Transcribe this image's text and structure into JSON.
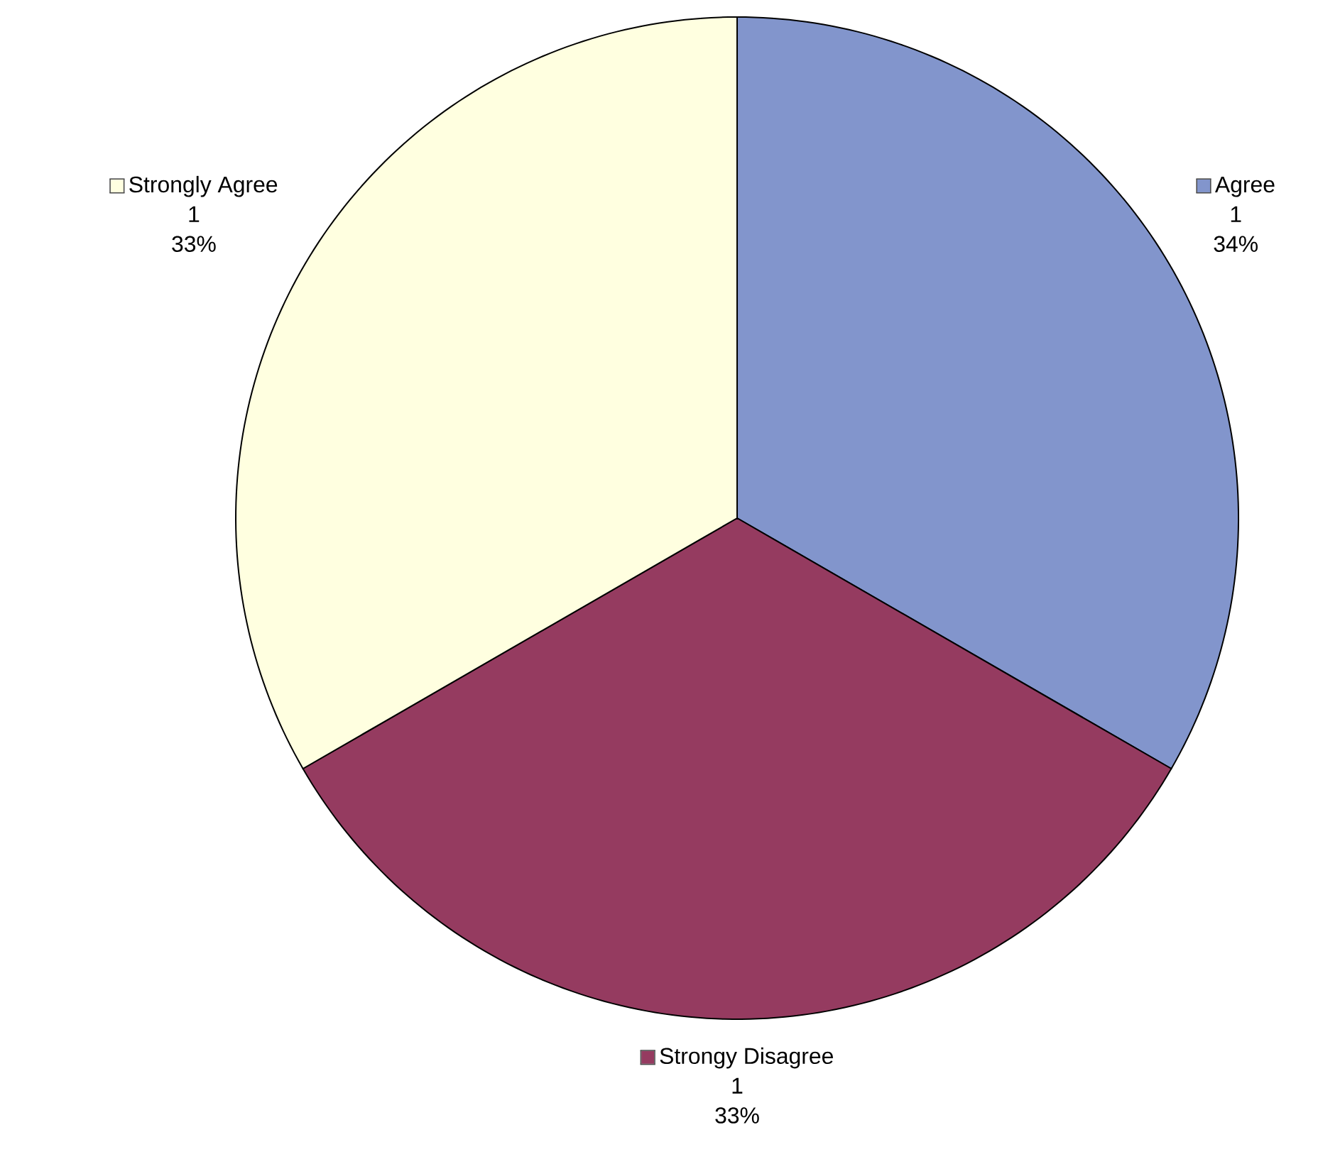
{
  "chart_data": {
    "type": "pie",
    "categories": [
      "Agree",
      "Strongy Disagree",
      "Strongly Agree"
    ],
    "values": [
      1,
      1,
      1
    ],
    "colors": [
      "#8295cc",
      "#953b60",
      "#ffffe0"
    ],
    "data_labels": true,
    "legend": "bottom left",
    "annotations": [
      {
        "text": "34%",
        "x": "Agree"
      },
      {
        "text": "33%",
        "x": "Strongy Disagree"
      },
      {
        "text": "33%",
        "x": "Strongly Agree"
      }
    ]
  }
}
